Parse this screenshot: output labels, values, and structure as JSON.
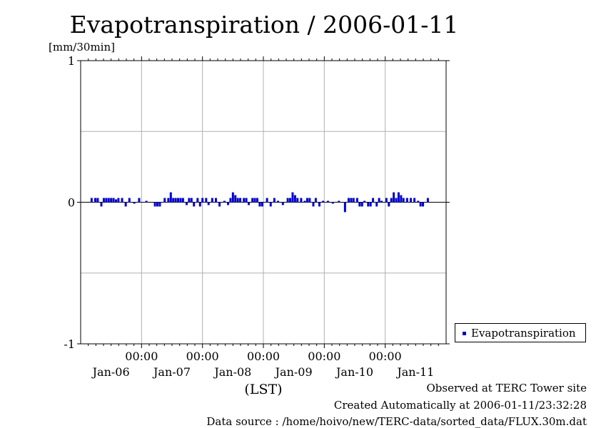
{
  "chart_data": {
    "type": "bar",
    "title": "Evapotranspiration / 2006-01-11",
    "unit_label": "[mm/30min]",
    "xlabel": "(LST)",
    "ylim": [
      -1,
      1
    ],
    "y_ticks": [
      "1",
      "0",
      "-1"
    ],
    "x_day_labels": [
      "Jan-06",
      "Jan-07",
      "Jan-08",
      "Jan-09",
      "Jan-10",
      "Jan-11"
    ],
    "x_time_labels": [
      "00:00",
      "00:00",
      "00:00",
      "00:00",
      "00:00"
    ],
    "grid": true,
    "legend_position": "right",
    "color": "#0000cc",
    "series": [
      {
        "name": "Evapotranspiration",
        "x_days": [
          0.18,
          0.24,
          0.28,
          0.34,
          0.38,
          0.42,
          0.46,
          0.5,
          0.54,
          0.58,
          0.62,
          0.68,
          0.74,
          0.8,
          0.88,
          0.96,
          1.08,
          1.22,
          1.26,
          1.3,
          1.38,
          1.44,
          1.48,
          1.52,
          1.56,
          1.6,
          1.64,
          1.68,
          1.74,
          1.78,
          1.82,
          1.86,
          1.92,
          1.96,
          2.0,
          2.06,
          2.1,
          2.16,
          2.22,
          2.28,
          2.36,
          2.42,
          2.46,
          2.5,
          2.54,
          2.58,
          2.62,
          2.68,
          2.72,
          2.76,
          2.82,
          2.86,
          2.9,
          2.94,
          2.98,
          3.06,
          3.12,
          3.18,
          3.24,
          3.32,
          3.4,
          3.44,
          3.48,
          3.52,
          3.56,
          3.62,
          3.68,
          3.72,
          3.76,
          3.82,
          3.86,
          3.92,
          3.98,
          4.06,
          4.14,
          4.24,
          4.34,
          4.4,
          4.44,
          4.48,
          4.54,
          4.58,
          4.62,
          4.66,
          4.72,
          4.76,
          4.8,
          4.86,
          4.9,
          4.94,
          5.02,
          5.06,
          5.1,
          5.14,
          5.18,
          5.22,
          5.26,
          5.3,
          5.36,
          5.42,
          5.48,
          5.54,
          5.58,
          5.62,
          5.7
        ],
        "values": [
          0.03,
          0.03,
          0.03,
          -0.03,
          0.03,
          0.03,
          0.03,
          0.03,
          0.03,
          0.02,
          0.03,
          0.03,
          -0.03,
          0.03,
          -0.01,
          0.03,
          0.01,
          -0.03,
          -0.03,
          -0.03,
          0.03,
          0.03,
          0.07,
          0.03,
          0.03,
          0.03,
          0.03,
          0.03,
          -0.02,
          0.03,
          0.03,
          -0.03,
          0.03,
          -0.03,
          0.03,
          0.03,
          -0.02,
          0.03,
          0.03,
          -0.03,
          0.01,
          -0.02,
          0.03,
          0.07,
          0.05,
          0.03,
          0.03,
          0.03,
          0.03,
          -0.02,
          0.03,
          0.03,
          0.03,
          -0.03,
          -0.03,
          0.03,
          -0.03,
          0.03,
          0.01,
          -0.02,
          0.03,
          0.03,
          0.07,
          0.05,
          0.03,
          0.03,
          0.01,
          0.03,
          0.03,
          -0.03,
          0.03,
          -0.03,
          0.01,
          0.01,
          -0.01,
          0.01,
          -0.07,
          0.03,
          0.03,
          0.03,
          0.03,
          -0.03,
          -0.03,
          0.01,
          -0.03,
          -0.03,
          0.03,
          -0.03,
          0.03,
          0.01,
          0.03,
          -0.03,
          0.03,
          0.07,
          0.03,
          0.07,
          0.05,
          0.03,
          0.03,
          0.03,
          0.03,
          0.01,
          -0.03,
          -0.03,
          0.03
        ]
      }
    ]
  },
  "legend": {
    "label": "Evapotranspiration"
  },
  "footer": {
    "line1": "Observed at TERC Tower site",
    "line2": "Created Automatically at 2006-01-11/23:32:28",
    "line3": "Data source : /home/hoivo/new/TERC-data/sorted_data/FLUX.30m.dat"
  }
}
